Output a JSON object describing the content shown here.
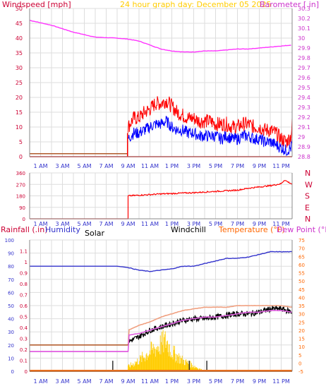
{
  "header": {
    "windspeed": "Windspeed [mph]",
    "center": "24 hour graph day:  December 05 2025",
    "barometer": "Barometer [.in]"
  },
  "colors": {
    "wind_red": "#ff0000",
    "wind_blue": "#0000ff",
    "barometer": "#ff33ff",
    "axis_red": "#cc0033",
    "axis_purple": "#cc33cc",
    "title_yellow": "#ffcc00",
    "orange": "#ff6600",
    "brown": "#b05a2a",
    "black": "#000000",
    "humidity": "#3333cc",
    "solar": "#ffcc00",
    "temperature": "#f0a080",
    "dewpoint": "#e060e0",
    "grid": "#dddddd"
  },
  "time_ticks": [
    "1 AM",
    "3 AM",
    "5 AM",
    "7 AM",
    "9 AM",
    "11 AM",
    "1 PM",
    "3 PM",
    "5 PM",
    "7 PM",
    "9 PM",
    "11 PM"
  ],
  "chart_data": [
    {
      "type": "line",
      "panel": "wind_barometer",
      "x_unit": "hour",
      "xlim": [
        0,
        24
      ],
      "y_left": {
        "label": "Windspeed [mph]",
        "ticks": [
          0,
          5,
          10,
          15,
          20,
          25,
          30,
          35,
          40,
          45,
          50
        ],
        "ylim": [
          0,
          50
        ]
      },
      "y_right": {
        "label": "Barometer [.in]",
        "ticks": [
          "28.8",
          "28.9",
          "29",
          "29.1",
          "29.2",
          "29.3",
          "29.4",
          "29.5",
          "29.6",
          "29.7",
          "29.8",
          "29.9",
          "30",
          "30.1",
          "30.2",
          "30.3"
        ],
        "ylim": [
          28.8,
          30.3
        ]
      },
      "series": [
        {
          "role": "barometer",
          "axis": "right",
          "x": [
            0,
            2,
            4,
            6,
            8,
            9,
            10,
            11,
            12,
            13,
            14,
            15,
            16,
            17,
            18,
            19,
            20,
            21,
            22,
            23,
            24
          ],
          "y": [
            30.18,
            30.13,
            30.06,
            30.01,
            30.0,
            29.99,
            29.97,
            29.93,
            29.89,
            29.87,
            29.86,
            29.86,
            29.87,
            29.87,
            29.88,
            29.89,
            29.89,
            29.9,
            29.91,
            29.92,
            29.93
          ]
        },
        {
          "role": "gust",
          "axis": "left",
          "x": [
            0,
            8.95,
            9.0,
            9.5,
            10,
            10.5,
            11,
            11.5,
            12,
            12.5,
            13,
            13.5,
            14,
            14.5,
            15,
            15.5,
            16,
            16.5,
            17,
            17.5,
            18,
            18.5,
            19,
            19.5,
            20,
            20.5,
            21,
            21.5,
            22,
            22.5,
            23,
            23.5,
            23.9,
            24
          ],
          "y": [
            0,
            0,
            10,
            13,
            13,
            15,
            16,
            18,
            18,
            19,
            17,
            15,
            14,
            13,
            13,
            12,
            12,
            12,
            11,
            11,
            11,
            10,
            10,
            11,
            11,
            10,
            10,
            9,
            9,
            8,
            6,
            5,
            7,
            11
          ]
        },
        {
          "role": "wind",
          "axis": "left",
          "x": [
            0,
            8.95,
            9.0,
            9.5,
            10,
            10.5,
            11,
            11.5,
            12,
            12.5,
            13,
            13.5,
            14,
            14.5,
            15,
            15.5,
            16,
            16.5,
            17,
            17.5,
            18,
            18.5,
            19,
            19.5,
            20,
            20.5,
            21,
            21.5,
            22,
            22.5,
            23,
            23.5,
            23.9,
            24
          ],
          "y": [
            0,
            0,
            6,
            8,
            8,
            9,
            10,
            11,
            11,
            12,
            10,
            9,
            9,
            8,
            8,
            7,
            7,
            7,
            7,
            6,
            7,
            6,
            6,
            7,
            7,
            6,
            6,
            5,
            5,
            4,
            3,
            2,
            3,
            5
          ]
        },
        {
          "role": "wind_baseline",
          "axis": "left",
          "x": [
            0,
            9,
            9.0,
            24
          ],
          "y": [
            1,
            1,
            0,
            0
          ]
        }
      ]
    },
    {
      "type": "line",
      "panel": "wind_direction",
      "x_unit": "hour",
      "xlim": [
        0,
        24
      ],
      "y_left": {
        "ticks": [
          "0",
          "90",
          "180",
          "270",
          "360"
        ],
        "ylim": [
          0,
          360
        ]
      },
      "y_right": {
        "ticks": [
          "N",
          "E",
          "S",
          "W",
          "N"
        ]
      },
      "series": [
        {
          "role": "direction",
          "x": [
            0,
            9.0,
            9.0,
            10,
            11,
            12,
            13,
            14,
            15,
            16,
            17,
            18,
            19,
            20,
            21,
            22,
            23,
            23.3,
            23.6,
            24
          ],
          "y": [
            0,
            0,
            180,
            185,
            190,
            195,
            198,
            202,
            205,
            210,
            215,
            220,
            225,
            240,
            250,
            260,
            275,
            305,
            290,
            272
          ]
        }
      ]
    },
    {
      "type": "line",
      "panel": "rain_humidity_temp",
      "x_unit": "hour",
      "xlim": [
        0,
        24
      ],
      "header": {
        "rainfall": "Rainfall (.in)",
        "humidity": "Humidity",
        "solar": "Solar",
        "windchill": "Windchill",
        "temperature": "Temperature (°F)",
        "dewpoint": "Dew Point (°F)"
      },
      "y_humidity": {
        "ticks": [
          0,
          10,
          20,
          30,
          40,
          50,
          60,
          70,
          80,
          90,
          100
        ],
        "ylim": [
          0,
          100
        ]
      },
      "y_rain": {
        "ticks": [
          "0",
          "0.1",
          "0.2",
          "0.3",
          "0.4",
          "0.5",
          "0.6",
          "0.7",
          "0.8",
          "0.9",
          "1",
          "1.1"
        ],
        "ylim": [
          0,
          1.2
        ]
      },
      "y_temp": {
        "ticks": [
          -5,
          0,
          5,
          10,
          15,
          20,
          25,
          30,
          35,
          40,
          45,
          50,
          55,
          60,
          65,
          70,
          75
        ],
        "ylim": [
          -5,
          75
        ]
      },
      "series": [
        {
          "role": "humidity",
          "axis": "humidity",
          "x": [
            0,
            8,
            9,
            10,
            11,
            12,
            13,
            14,
            15,
            16,
            17,
            18,
            19,
            20,
            21,
            22,
            23,
            24
          ],
          "y": [
            80,
            80,
            79,
            77,
            76,
            77,
            78,
            80,
            80,
            82,
            84,
            86,
            86,
            87,
            89,
            91,
            91,
            91
          ]
        },
        {
          "role": "temperature",
          "axis": "temp",
          "x": [
            0,
            9.0,
            9.0,
            10,
            11,
            12,
            13,
            14,
            15,
            16,
            17,
            18,
            19,
            20,
            21,
            22,
            23,
            24
          ],
          "y": [
            11,
            11,
            20,
            23,
            25,
            28,
            30,
            32,
            33,
            34,
            34,
            34,
            35,
            35,
            35,
            35,
            35,
            34
          ]
        },
        {
          "role": "dewpoint",
          "axis": "temp",
          "x": [
            0,
            9.0,
            9.0,
            10,
            11,
            12,
            13,
            14,
            15,
            16,
            17,
            18,
            19,
            20,
            21,
            22,
            23,
            24
          ],
          "y": [
            7,
            7,
            17,
            18,
            20,
            22,
            24,
            26,
            27,
            28,
            28,
            29,
            30,
            31,
            31,
            32,
            32,
            31
          ]
        },
        {
          "role": "windchill",
          "axis": "temp",
          "x": [
            0,
            9.0,
            9.0,
            10,
            11,
            12,
            13,
            14,
            15,
            16,
            17,
            18,
            19,
            20,
            21,
            22,
            23,
            24
          ],
          "y": [
            11,
            11,
            13,
            16,
            20,
            22,
            24,
            26,
            27,
            27,
            28,
            29,
            30,
            30,
            31,
            33,
            33,
            31
          ]
        },
        {
          "role": "rain_baseline",
          "axis": "rain",
          "x": [
            0,
            24
          ],
          "y": [
            0,
            0
          ]
        },
        {
          "role": "solar",
          "axis": "humidity",
          "x": [
            9,
            10,
            11,
            12,
            12.5,
            13,
            14,
            15,
            16
          ],
          "y": [
            5,
            12,
            22,
            30,
            34,
            22,
            12,
            6,
            0
          ]
        }
      ]
    }
  ]
}
